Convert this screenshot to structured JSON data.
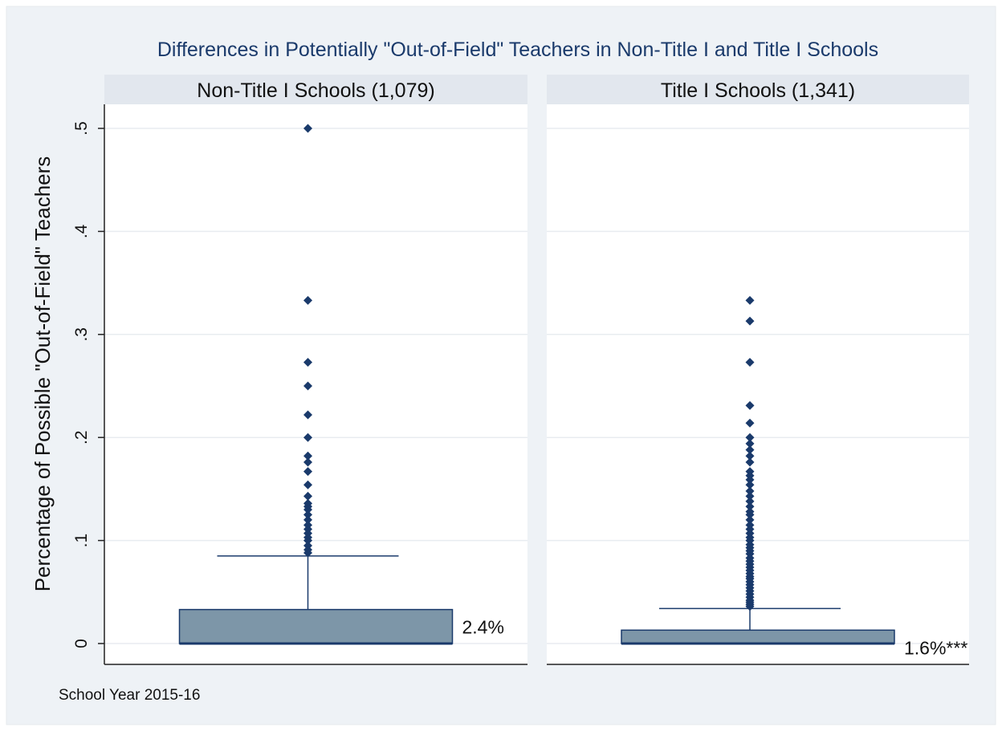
{
  "chart_data": {
    "type": "box",
    "title": "Differences in Potentially \"Out-of-Field\" Teachers in Non-Title I and Title I Schools",
    "ylabel": "Percentage of Possible \"Out-of-Field\" Teachers",
    "ylim": [
      0,
      0.5
    ],
    "yticks": [
      0,
      0.1,
      0.2,
      0.3,
      0.4,
      0.5
    ],
    "ytick_labels": [
      "0",
      ".1",
      ".2",
      ".3",
      ".4",
      ".5"
    ],
    "note": "School Year 2015-16",
    "grid": true,
    "colors": {
      "box_fill": "#7d96a8",
      "box_edge": "#1a3a6b",
      "marker": "#1a3a6b",
      "panel_header": "#e2e7ee",
      "background": "#eef2f6",
      "title": "#1a3a6b"
    },
    "panels": [
      {
        "header": "Non-Title I Schools (1,079)",
        "q1": 0,
        "median": 0,
        "q3": 0.033,
        "whisker_low": 0,
        "whisker_high": 0.085,
        "label": "2.4%",
        "outliers": [
          0.5,
          0.333,
          0.273,
          0.25,
          0.222,
          0.2,
          0.182,
          0.176,
          0.167,
          0.154,
          0.143,
          0.136,
          0.133,
          0.13,
          0.125,
          0.12,
          0.115,
          0.111,
          0.107,
          0.103,
          0.1,
          0.095,
          0.091,
          0.088
        ]
      },
      {
        "header": "Title I Schools (1,341)",
        "q1": 0,
        "median": 0,
        "q3": 0.013,
        "whisker_low": 0,
        "whisker_high": 0.034,
        "label": "1.6%***",
        "outliers": [
          0.333,
          0.313,
          0.273,
          0.231,
          0.214,
          0.2,
          0.194,
          0.188,
          0.182,
          0.176,
          0.167,
          0.163,
          0.159,
          0.154,
          0.148,
          0.143,
          0.138,
          0.133,
          0.128,
          0.125,
          0.12,
          0.115,
          0.111,
          0.107,
          0.103,
          0.1,
          0.096,
          0.093,
          0.09,
          0.087,
          0.083,
          0.08,
          0.077,
          0.074,
          0.071,
          0.068,
          0.065,
          0.063,
          0.06,
          0.057,
          0.054,
          0.051,
          0.048,
          0.045,
          0.042,
          0.04,
          0.038,
          0.036
        ]
      }
    ]
  }
}
